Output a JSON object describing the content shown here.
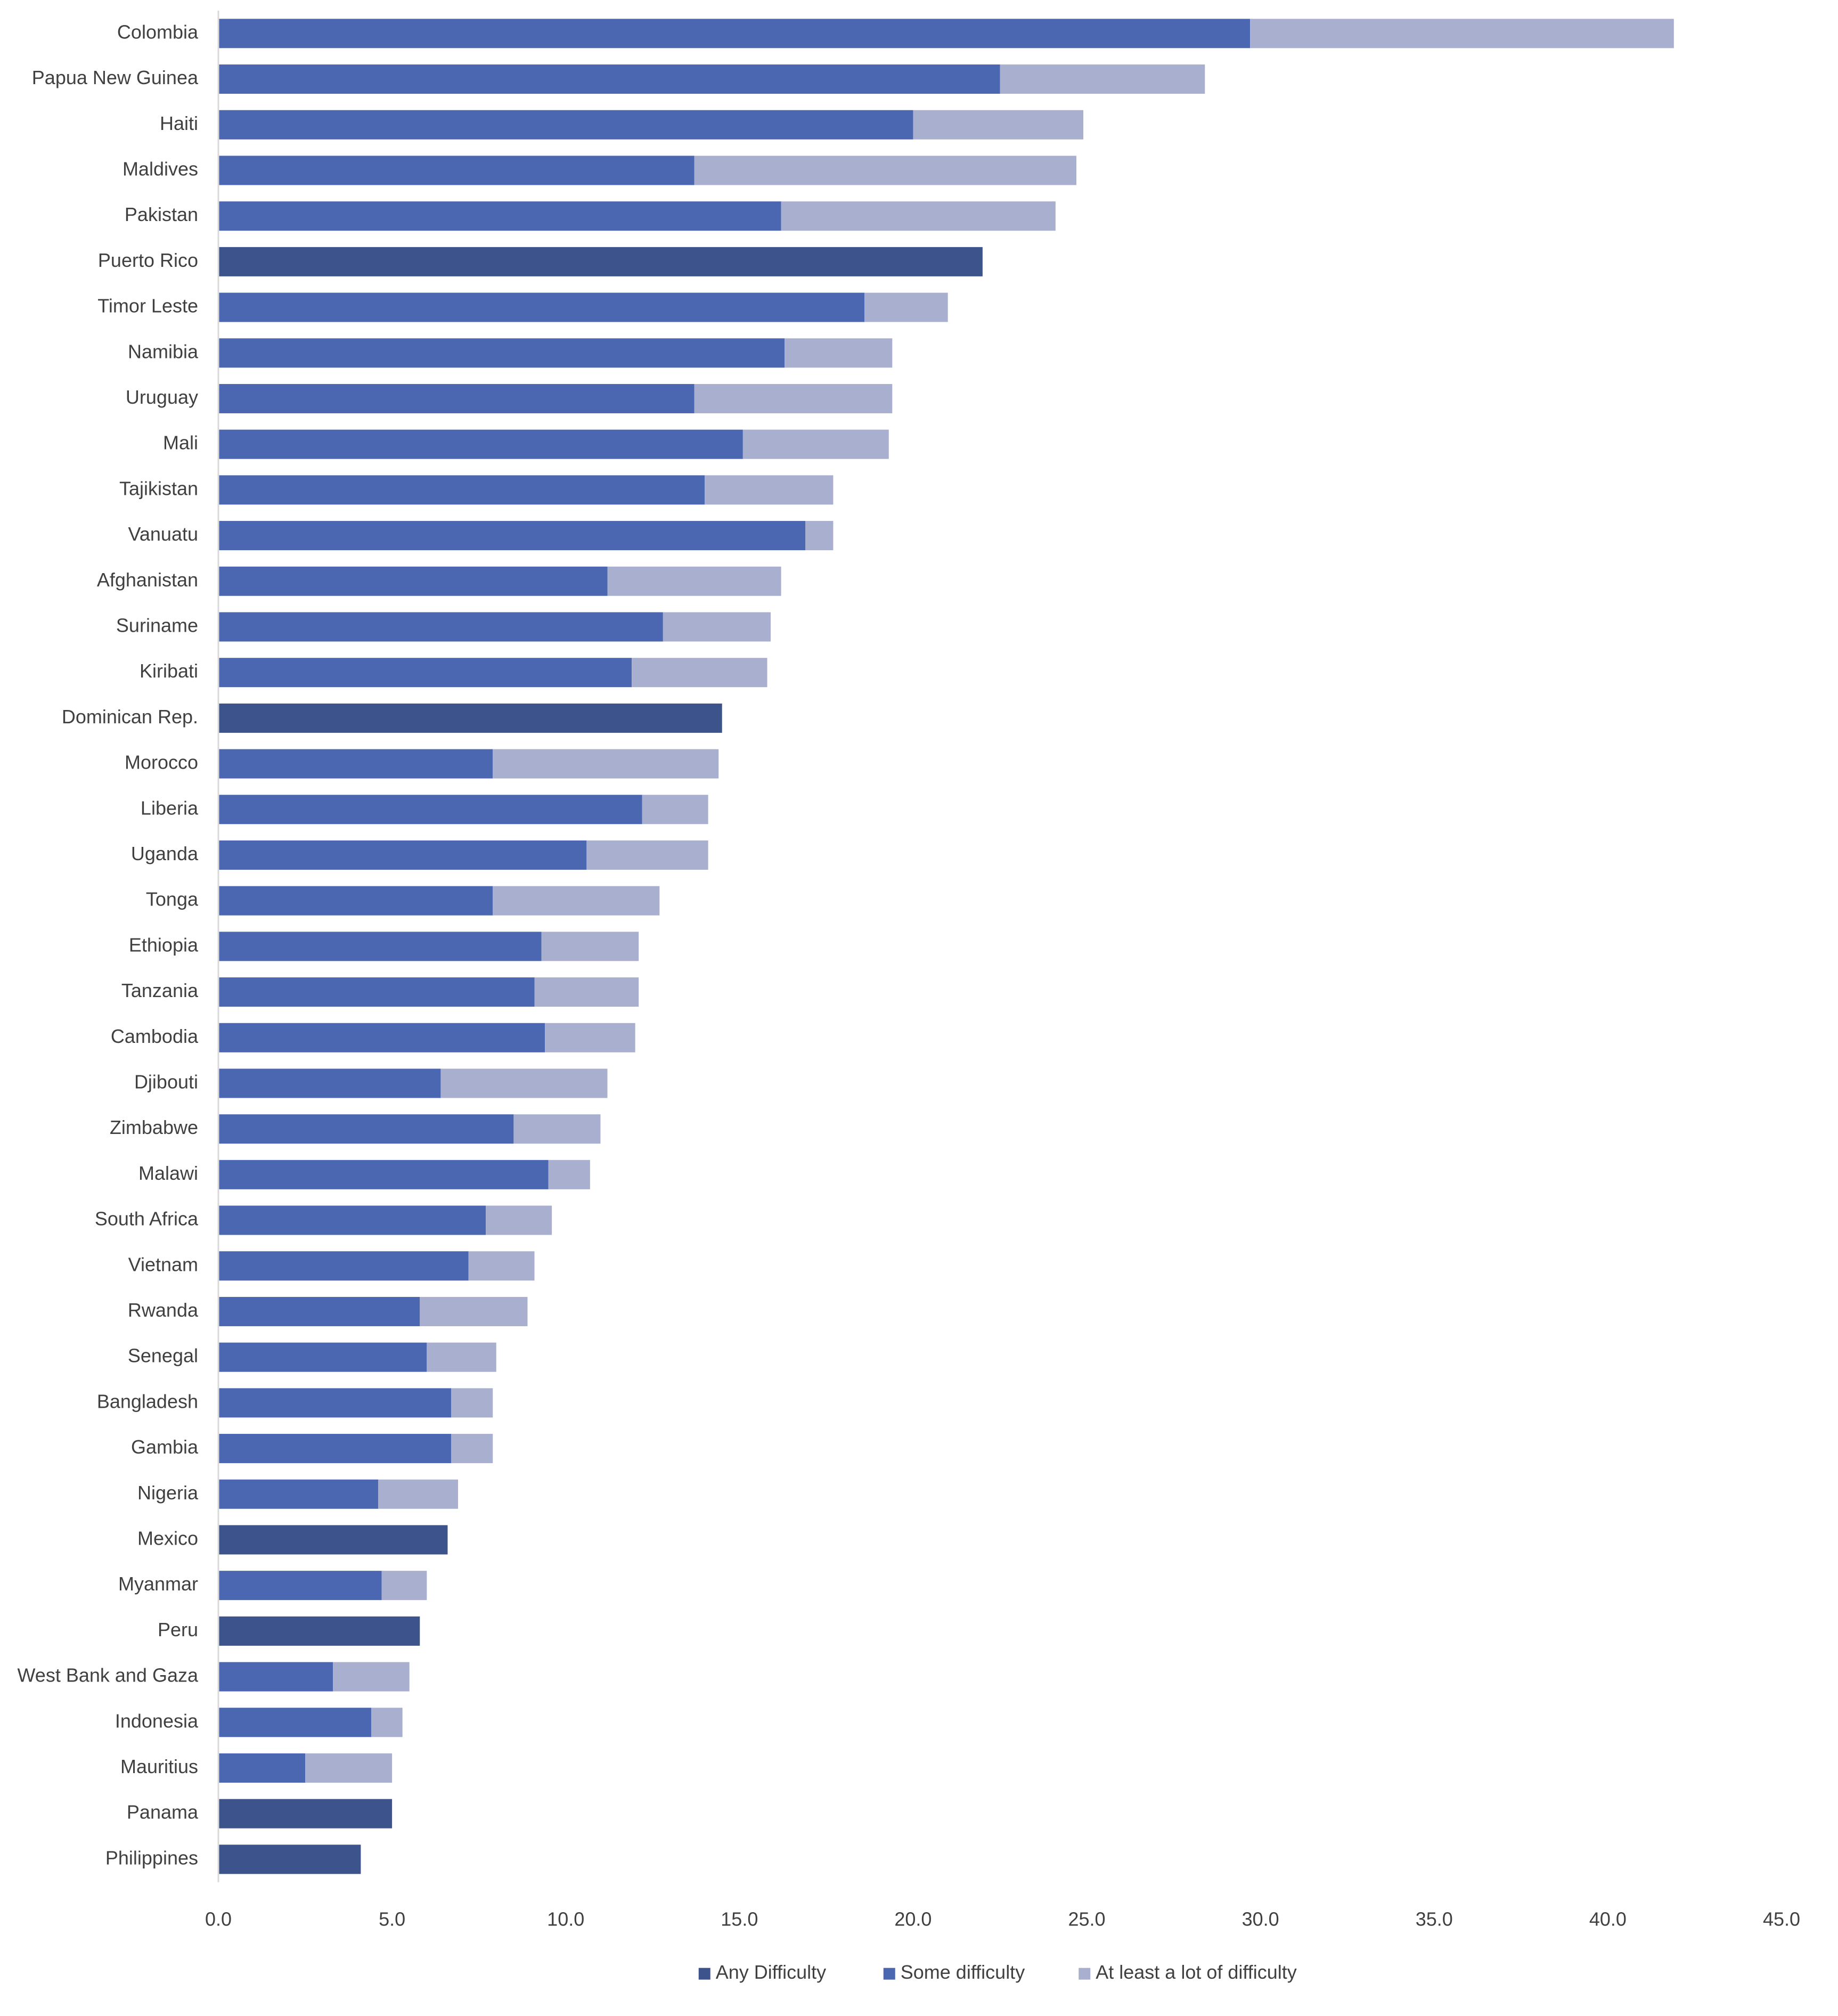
{
  "chart_data": {
    "type": "bar",
    "orientation": "horizontal",
    "stacked": true,
    "categories": [
      "Colombia",
      "Papua New Guinea",
      "Haiti",
      "Maldives",
      "Pakistan",
      "Puerto Rico",
      "Timor Leste",
      "Namibia",
      "Uruguay",
      "Mali",
      "Tajikistan",
      "Vanuatu",
      "Afghanistan",
      "Suriname",
      "Kiribati",
      "Dominican Rep.",
      "Morocco",
      "Liberia",
      "Uganda",
      "Tonga",
      "Ethiopia",
      "Tanzania",
      "Cambodia",
      "Djibouti",
      "Zimbabwe",
      "Malawi",
      "South Africa",
      "Vietnam",
      "Rwanda",
      "Senegal",
      "Bangladesh",
      "Gambia",
      "Nigeria",
      "Mexico",
      "Myanmar",
      "Peru",
      "West Bank and Gaza",
      "Indonesia",
      "Mauritius",
      "Panama",
      "Philippines"
    ],
    "series": [
      {
        "name": "Any Difficulty",
        "color": "#3c538b",
        "values": [
          0,
          0,
          0,
          0,
          0,
          22.0,
          0,
          0,
          0,
          0,
          0,
          0,
          0,
          0,
          0,
          14.5,
          0,
          0,
          0,
          0,
          0,
          0,
          0,
          0,
          0,
          0,
          0,
          0,
          0,
          0,
          0,
          0,
          0,
          6.6,
          0,
          5.8,
          0,
          0,
          0,
          5.0,
          4.1
        ]
      },
      {
        "name": "Some difficulty",
        "color": "#4b67b1",
        "values": [
          29.7,
          22.5,
          20.0,
          13.7,
          16.2,
          0,
          18.6,
          16.3,
          13.7,
          15.1,
          14.0,
          16.9,
          11.2,
          12.8,
          11.9,
          0,
          7.9,
          12.2,
          10.6,
          7.9,
          9.3,
          9.1,
          9.4,
          6.4,
          8.5,
          9.5,
          7.7,
          7.2,
          5.8,
          6.0,
          6.7,
          6.7,
          4.6,
          0,
          4.7,
          0,
          3.3,
          4.4,
          2.5,
          0,
          0
        ]
      },
      {
        "name": "At least a lot of difficulty",
        "color": "#a9b0cf",
        "values": [
          12.2,
          5.9,
          4.9,
          11.0,
          7.9,
          0,
          2.4,
          3.1,
          5.7,
          4.2,
          3.7,
          0.8,
          5.0,
          3.1,
          3.9,
          0,
          6.5,
          1.9,
          3.5,
          4.8,
          2.8,
          3.0,
          2.6,
          4.8,
          2.5,
          1.2,
          1.9,
          1.9,
          3.1,
          2.0,
          1.2,
          1.2,
          2.3,
          0,
          1.3,
          0,
          2.2,
          0.9,
          2.5,
          0,
          0
        ]
      }
    ],
    "xlim": [
      0,
      45
    ],
    "xticks": [
      "0.0",
      "5.0",
      "10.0",
      "15.0",
      "20.0",
      "25.0",
      "30.0",
      "35.0",
      "40.0",
      "45.0"
    ],
    "legend_position": "bottom",
    "gridlines": false
  }
}
